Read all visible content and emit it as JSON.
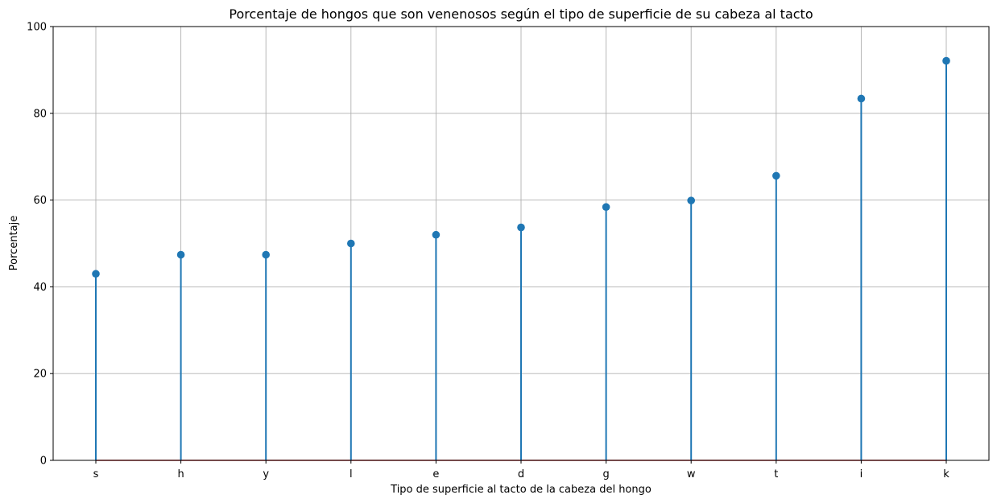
{
  "chart_data": {
    "type": "lollipop",
    "title": "Porcentaje de hongos que son venenosos según el tipo de superficie de su cabeza al tacto",
    "xlabel": "Tipo de superficie al tacto de la cabeza del hongo",
    "ylabel": "Porcentaje",
    "categories": [
      "s",
      "h",
      "y",
      "l",
      "e",
      "d",
      "g",
      "w",
      "t",
      "i",
      "k"
    ],
    "values": [
      43.0,
      47.4,
      47.4,
      50.0,
      52.0,
      53.7,
      58.4,
      59.9,
      65.6,
      83.4,
      92.1
    ],
    "ylim": [
      0,
      100
    ],
    "yticks": [
      0,
      20,
      40,
      60,
      80,
      100
    ],
    "grid": true,
    "colors": {
      "stem": "#1f77b4",
      "marker": "#1f77b4",
      "baseline": "#d62728",
      "grid": "#b0b0b0"
    }
  }
}
